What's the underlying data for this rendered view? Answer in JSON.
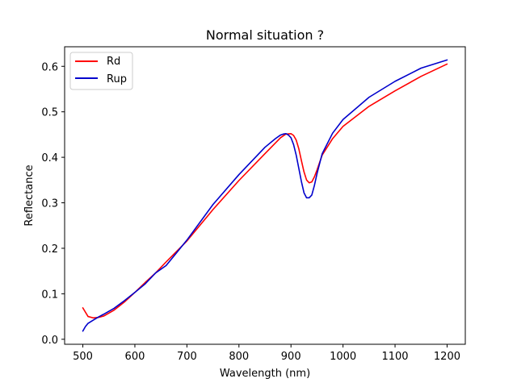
{
  "chart_data": {
    "type": "line",
    "title": "Normal situation ?",
    "xlabel": "Wavelength (nm)",
    "ylabel": "Reflectance",
    "xlim": [
      465,
      1235
    ],
    "ylim": [
      -0.011,
      0.643
    ],
    "xticks": [
      500,
      600,
      700,
      800,
      900,
      1000,
      1100,
      1200
    ],
    "yticks": [
      0.0,
      0.1,
      0.2,
      0.3,
      0.4,
      0.5,
      0.6
    ],
    "ytick_labels": [
      "0.0",
      "0.1",
      "0.2",
      "0.3",
      "0.4",
      "0.5",
      "0.6"
    ],
    "grid": false,
    "legend": "upper-left",
    "series": [
      {
        "name": "Rd",
        "color": "#ff0000",
        "x": [
          500,
          510,
          520,
          530,
          540,
          560,
          580,
          600,
          620,
          640,
          660,
          680,
          700,
          750,
          800,
          850,
          880,
          890,
          900,
          905,
          910,
          915,
          920,
          925,
          930,
          935,
          940,
          945,
          950,
          960,
          980,
          1000,
          1050,
          1100,
          1150,
          1200
        ],
        "y": [
          0.069,
          0.05,
          0.047,
          0.048,
          0.051,
          0.064,
          0.082,
          0.103,
          0.125,
          0.146,
          0.17,
          0.193,
          0.216,
          0.285,
          0.349,
          0.408,
          0.443,
          0.451,
          0.452,
          0.448,
          0.438,
          0.419,
          0.393,
          0.368,
          0.35,
          0.344,
          0.346,
          0.357,
          0.372,
          0.405,
          0.441,
          0.468,
          0.512,
          0.546,
          0.578,
          0.605
        ]
      },
      {
        "name": "Rup",
        "color": "#0000cc",
        "x": [
          500,
          505,
          510,
          520,
          530,
          540,
          560,
          580,
          600,
          620,
          640,
          660,
          680,
          700,
          750,
          800,
          850,
          870,
          880,
          885,
          890,
          895,
          900,
          905,
          910,
          915,
          920,
          925,
          930,
          935,
          940,
          945,
          950,
          960,
          980,
          1000,
          1050,
          1100,
          1150,
          1200
        ],
        "y": [
          0.018,
          0.028,
          0.035,
          0.042,
          0.049,
          0.055,
          0.068,
          0.085,
          0.103,
          0.122,
          0.146,
          0.162,
          0.19,
          0.218,
          0.296,
          0.362,
          0.422,
          0.441,
          0.449,
          0.451,
          0.452,
          0.449,
          0.443,
          0.428,
          0.405,
          0.376,
          0.347,
          0.322,
          0.311,
          0.311,
          0.317,
          0.338,
          0.364,
          0.408,
          0.453,
          0.483,
          0.532,
          0.567,
          0.596,
          0.614
        ]
      }
    ]
  }
}
